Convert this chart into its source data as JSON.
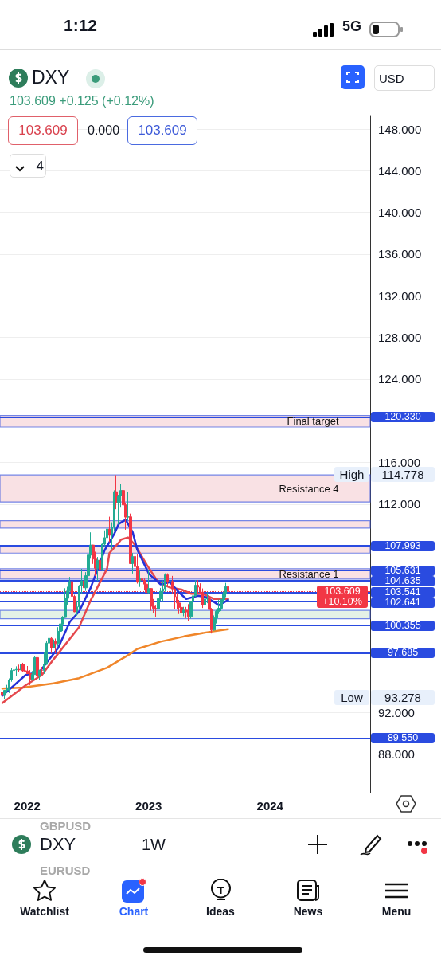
{
  "chart_data": {
    "type": "candlestick",
    "title": "DXY",
    "subtitle": "103.609 +0.125 (+0.12%)",
    "x": [
      "2021-10-18",
      "2021-10-25",
      "2021-11-01",
      "2021-11-08",
      "2021-11-15",
      "2021-11-22",
      "2021-11-29",
      "2021-12-06",
      "2021-12-13",
      "2021-12-20",
      "2021-12-27",
      "2022-01-03",
      "2022-01-10",
      "2022-01-17",
      "2022-01-24",
      "2022-01-31",
      "2022-02-07",
      "2022-02-14",
      "2022-02-21",
      "2022-02-28",
      "2022-03-07",
      "2022-03-14",
      "2022-03-21",
      "2022-03-28",
      "2022-04-04",
      "2022-04-11",
      "2022-04-18",
      "2022-04-25",
      "2022-05-02",
      "2022-05-09",
      "2022-05-16",
      "2022-05-23",
      "2022-05-30",
      "2022-06-06",
      "2022-06-13",
      "2022-06-20",
      "2022-06-27",
      "2022-07-04",
      "2022-07-11",
      "2022-07-18",
      "2022-07-25",
      "2022-08-01",
      "2022-08-08",
      "2022-08-15",
      "2022-08-22",
      "2022-08-29",
      "2022-09-05",
      "2022-09-12",
      "2022-09-19",
      "2022-09-26",
      "2022-10-03",
      "2022-10-10",
      "2022-10-17",
      "2022-10-24",
      "2022-10-31",
      "2022-11-07",
      "2022-11-14",
      "2022-11-21",
      "2022-11-28",
      "2022-12-05",
      "2022-12-12",
      "2022-12-19",
      "2022-12-26",
      "2023-01-02",
      "2023-01-09",
      "2023-01-16",
      "2023-01-23",
      "2023-01-30",
      "2023-02-06",
      "2023-02-13",
      "2023-02-20",
      "2023-02-27",
      "2023-03-06",
      "2023-03-13",
      "2023-03-20",
      "2023-03-27",
      "2023-04-03",
      "2023-04-10",
      "2023-04-17",
      "2023-04-24",
      "2023-05-01",
      "2023-05-08",
      "2023-05-15",
      "2023-05-22",
      "2023-05-29",
      "2023-06-05",
      "2023-06-12",
      "2023-06-19",
      "2023-06-26",
      "2023-07-03",
      "2023-07-10",
      "2023-07-17",
      "2023-07-24",
      "2023-07-31",
      "2023-08-07",
      "2023-08-14",
      "2023-08-21",
      "2023-08-28"
    ],
    "ohlc": [
      [
        93.95,
        94.05,
        93.5,
        93.64
      ],
      [
        93.64,
        94.15,
        93.278,
        94.12
      ],
      [
        94.12,
        94.65,
        93.88,
        94.32
      ],
      [
        94.32,
        95.27,
        93.87,
        95.12
      ],
      [
        95.12,
        96.25,
        94.95,
        96.03
      ],
      [
        96.03,
        96.94,
        95.98,
        96.09
      ],
      [
        96.09,
        96.43,
        95.53,
        96.15
      ],
      [
        96.15,
        96.59,
        95.85,
        96.08
      ],
      [
        96.08,
        96.91,
        95.89,
        96.64
      ],
      [
        96.64,
        96.77,
        95.9,
        96.0
      ],
      [
        96.0,
        96.44,
        95.58,
        95.97
      ],
      [
        95.97,
        96.46,
        95.68,
        95.73
      ],
      [
        95.73,
        96.07,
        94.63,
        95.17
      ],
      [
        95.17,
        95.98,
        95.06,
        95.64
      ],
      [
        95.64,
        97.44,
        95.63,
        97.27
      ],
      [
        97.27,
        97.35,
        95.14,
        95.49
      ],
      [
        95.49,
        96.1,
        95.14,
        96.05
      ],
      [
        96.05,
        96.38,
        95.63,
        96.04
      ],
      [
        96.04,
        97.74,
        95.71,
        96.61
      ],
      [
        96.61,
        98.91,
        96.59,
        98.66
      ],
      [
        98.66,
        99.42,
        97.72,
        99.12
      ],
      [
        99.12,
        99.29,
        97.7,
        98.21
      ],
      [
        98.21,
        99.01,
        98.19,
        98.8
      ],
      [
        98.8,
        99.1,
        97.68,
        98.61
      ],
      [
        98.61,
        100.19,
        98.32,
        99.79
      ],
      [
        99.79,
        100.75,
        99.39,
        100.5
      ],
      [
        100.5,
        101.26,
        99.82,
        101.12
      ],
      [
        101.12,
        103.93,
        101.08,
        102.96
      ],
      [
        102.96,
        104.07,
        102.35,
        103.66
      ],
      [
        103.66,
        105.01,
        103.61,
        104.57
      ],
      [
        104.57,
        104.64,
        102.65,
        103.15
      ],
      [
        103.15,
        103.3,
        101.64,
        101.66
      ],
      [
        101.66,
        102.74,
        101.3,
        102.14
      ],
      [
        102.14,
        104.24,
        101.81,
        104.15
      ],
      [
        104.15,
        105.79,
        103.41,
        104.64
      ],
      [
        104.64,
        104.79,
        103.68,
        103.97
      ],
      [
        103.97,
        105.47,
        103.67,
        105.13
      ],
      [
        105.13,
        107.79,
        104.76,
        107.11
      ],
      [
        107.11,
        109.29,
        106.76,
        108.07
      ],
      [
        108.07,
        108.1,
        106.26,
        106.73
      ],
      [
        106.73,
        107.43,
        105.09,
        105.85
      ],
      [
        105.85,
        106.93,
        104.64,
        106.61
      ],
      [
        106.61,
        106.81,
        104.64,
        105.69
      ],
      [
        105.69,
        108.21,
        105.59,
        108.16
      ],
      [
        108.16,
        109.48,
        107.94,
        108.78
      ],
      [
        108.78,
        110.03,
        108.32,
        109.61
      ],
      [
        109.61,
        110.79,
        108.35,
        109.0
      ],
      [
        109.0,
        110.26,
        107.68,
        109.77
      ],
      [
        109.77,
        113.33,
        109.37,
        113.19
      ],
      [
        113.19,
        114.778,
        111.51,
        112.12
      ],
      [
        112.12,
        112.9,
        110.05,
        112.8
      ],
      [
        112.8,
        113.92,
        111.66,
        113.31
      ],
      [
        113.31,
        113.88,
        111.08,
        111.92
      ],
      [
        111.92,
        112.15,
        109.54,
        110.75
      ],
      [
        110.75,
        113.15,
        110.42,
        110.78
      ],
      [
        110.78,
        111.09,
        106.27,
        106.29
      ],
      [
        106.29,
        107.31,
        105.34,
        106.98
      ],
      [
        106.98,
        107.99,
        105.66,
        106.0
      ],
      [
        106.0,
        107.19,
        104.37,
        104.51
      ],
      [
        104.51,
        105.67,
        104.05,
        104.83
      ],
      [
        104.83,
        105.19,
        103.44,
        104.7
      ],
      [
        104.7,
        104.86,
        103.79,
        104.32
      ],
      [
        104.32,
        104.55,
        103.45,
        103.52
      ],
      [
        103.52,
        105.63,
        103.38,
        103.9
      ],
      [
        103.9,
        103.95,
        101.77,
        102.2
      ],
      [
        102.2,
        102.9,
        101.53,
        101.99
      ],
      [
        101.99,
        102.26,
        101.18,
        101.93
      ],
      [
        101.93,
        103.08,
        100.82,
        102.92
      ],
      [
        102.92,
        103.96,
        102.65,
        103.63
      ],
      [
        103.63,
        104.67,
        102.61,
        103.87
      ],
      [
        103.87,
        105.36,
        103.6,
        105.21
      ],
      [
        105.21,
        105.36,
        104.1,
        104.52
      ],
      [
        104.52,
        105.88,
        104.09,
        104.58
      ],
      [
        104.58,
        105.11,
        103.42,
        103.86
      ],
      [
        103.86,
        103.9,
        101.91,
        103.12
      ],
      [
        103.12,
        103.49,
        101.92,
        102.51
      ],
      [
        102.51,
        102.81,
        101.45,
        102.09
      ],
      [
        102.09,
        102.8,
        100.79,
        101.55
      ],
      [
        101.55,
        102.14,
        101.24,
        101.82
      ],
      [
        101.82,
        102.13,
        101.06,
        101.66
      ],
      [
        101.66,
        102.4,
        100.79,
        101.21
      ],
      [
        101.21,
        102.73,
        101.01,
        102.69
      ],
      [
        102.69,
        103.63,
        102.22,
        103.2
      ],
      [
        103.2,
        104.7,
        103.11,
        104.22
      ],
      [
        104.22,
        104.7,
        103.39,
        104.03
      ],
      [
        104.03,
        104.4,
        103.36,
        103.56
      ],
      [
        103.56,
        103.91,
        102.03,
        102.34
      ],
      [
        102.34,
        103.07,
        101.93,
        102.9
      ],
      [
        102.9,
        103.54,
        102.49,
        102.91
      ],
      [
        102.91,
        103.33,
        101.79,
        101.88
      ],
      [
        101.88,
        102.03,
        99.58,
        99.91
      ],
      [
        99.91,
        101.32,
        99.86,
        101.07
      ],
      [
        101.07,
        101.84,
        100.54,
        101.71
      ],
      [
        101.71,
        102.84,
        101.45,
        102.0
      ],
      [
        102.0,
        102.91,
        101.73,
        102.84
      ],
      [
        102.84,
        103.59,
        102.55,
        103.37
      ],
      [
        103.37,
        104.44,
        103.07,
        104.09
      ],
      [
        104.09,
        104.27,
        103.05,
        103.609
      ]
    ],
    "colors": [
      "#f23645",
      "#22ab94",
      "#22ab94",
      "#22ab94",
      "#22ab94",
      "#22ab94",
      "#22ab94",
      "#f23645",
      "#22ab94",
      "#f23645",
      "#f23645",
      "#f23645",
      "#f23645",
      "#22ab94",
      "#22ab94",
      "#f23645",
      "#22ab94",
      "#f23645",
      "#22ab94",
      "#22ab94",
      "#22ab94",
      "#f23645",
      "#22ab94",
      "#f23645",
      "#22ab94",
      "#22ab94",
      "#22ab94",
      "#22ab94",
      "#22ab94",
      "#22ab94",
      "#f23645",
      "#f23645",
      "#22ab94",
      "#22ab94",
      "#22ab94",
      "#f23645",
      "#22ab94",
      "#22ab94",
      "#22ab94",
      "#f23645",
      "#f23645",
      "#22ab94",
      "#f23645",
      "#22ab94",
      "#22ab94",
      "#22ab94",
      "#f23645",
      "#22ab94",
      "#22ab94",
      "#f23645",
      "#22ab94",
      "#22ab94",
      "#f23645",
      "#f23645",
      "#22ab94",
      "#f23645",
      "#22ab94",
      "#f23645",
      "#f23645",
      "#22ab94",
      "#f23645",
      "#f23645",
      "#f23645",
      "#22ab94",
      "#f23645",
      "#f23645",
      "#f23645",
      "#22ab94",
      "#22ab94",
      "#22ab94",
      "#22ab94",
      "#f23645",
      "#22ab94",
      "#f23645",
      "#f23645",
      "#f23645",
      "#f23645",
      "#f23645",
      "#22ab94",
      "#f23645",
      "#f23645",
      "#22ab94",
      "#22ab94",
      "#22ab94",
      "#f23645",
      "#f23645",
      "#f23645",
      "#22ab94",
      "#22ab94",
      "#f23645",
      "#f23645",
      "#22ab94",
      "#22ab94",
      "#22ab94",
      "#22ab94",
      "#22ab94",
      "#22ab94",
      "#f23645"
    ],
    "series": [
      {
        "type": "line",
        "color": "#f0862a",
        "x": [
          "2021-10-18",
          "2021-12-20",
          "2022-03-21",
          "2022-06-06",
          "2022-08-29",
          "2022-10-31",
          "2022-11-28",
          "2023-02-06",
          "2023-04-17",
          "2023-06-26",
          "2023-08-28"
        ],
        "values": [
          94.3,
          94.4,
          94.8,
          95.3,
          96.3,
          97.5,
          98.1,
          98.8,
          99.3,
          99.7,
          100.0
        ]
      },
      {
        "type": "line",
        "color": "#e5484d",
        "x": [
          "2021-10-18",
          "2021-12-27",
          "2022-02-14",
          "2022-03-21",
          "2022-06-06",
          "2022-07-11",
          "2022-08-29",
          "2022-09-05",
          "2022-10-03",
          "2022-10-10",
          "2022-10-31",
          "2022-11-21",
          "2022-12-26",
          "2023-01-30",
          "2023-03-06",
          "2023-04-10",
          "2023-05-08",
          "2023-06-12",
          "2023-07-17",
          "2023-08-28"
        ],
        "values": [
          92.9,
          94.6,
          95.6,
          97.1,
          100.2,
          102.8,
          105.8,
          107.3,
          108.3,
          108.6,
          108.8,
          108.1,
          106.2,
          104.5,
          104.0,
          103.8,
          103.4,
          103.4,
          102.9,
          102.9
        ]
      },
      {
        "type": "line",
        "color": "#2531d8",
        "x": [
          "2021-10-18",
          "2021-12-27",
          "2022-02-07",
          "2022-04-04",
          "2022-05-09",
          "2022-06-06",
          "2022-07-11",
          "2022-08-22",
          "2022-09-19",
          "2022-10-03",
          "2022-10-24",
          "2022-11-14",
          "2022-11-28",
          "2023-01-02",
          "2023-02-06",
          "2023-03-06",
          "2023-04-03",
          "2023-04-24",
          "2023-05-29",
          "2023-06-19",
          "2023-07-17",
          "2023-07-31",
          "2023-08-28"
        ],
        "values": [
          93.6,
          95.6,
          95.9,
          98.2,
          100.7,
          101.7,
          104.0,
          107.6,
          109.1,
          110.1,
          110.5,
          109.3,
          107.6,
          105.3,
          104.3,
          104.5,
          103.5,
          102.9,
          103.2,
          103.1,
          102.6,
          102.3,
          102.8
        ]
      }
    ],
    "marker": "none",
    "xlim": [
      "2021-10-11",
      "2024-10-28"
    ],
    "xticks": [
      "2022",
      "2023",
      "2024"
    ],
    "ylim": [
      84.3,
      149.3
    ],
    "yticks": [
      {
        "value": 148,
        "label": "148.000"
      },
      {
        "value": 144,
        "label": "144.000"
      },
      {
        "value": 140,
        "label": "140.000"
      },
      {
        "value": 136,
        "label": "136.000"
      },
      {
        "value": 132,
        "label": "132.000"
      },
      {
        "value": 128,
        "label": "128.000"
      },
      {
        "value": 124,
        "label": "124.000"
      },
      {
        "value": 116,
        "label": "116.000"
      },
      {
        "value": 112,
        "label": "112.000"
      },
      {
        "value": 92,
        "label": "92.000"
      },
      {
        "value": 88,
        "label": "88.000"
      }
    ],
    "grid": "y",
    "ref_lines": [
      {
        "axis": "y",
        "value": 120.33,
        "label": "120.330",
        "color": "#2a4be0"
      },
      {
        "axis": "y",
        "value": 107.993,
        "label": "107.993",
        "color": "#2a4be0"
      },
      {
        "axis": "y",
        "value": 105.631,
        "label": "105.631",
        "color": "#2a4be0"
      },
      {
        "axis": "y",
        "value": 104.635,
        "label": "104.635",
        "color": "#2a4be0"
      },
      {
        "axis": "y",
        "value": 103.609,
        "label": "103.609",
        "color": "#f23645",
        "line_style": "dotted"
      },
      {
        "axis": "y",
        "value": 103.541,
        "label": "103.541",
        "color": "#2a4be0"
      },
      {
        "axis": "y",
        "value": 102.641,
        "label": "102.641",
        "color": "#2a4be0"
      },
      {
        "axis": "y",
        "value": 100.355,
        "label": "100.355",
        "color": "#2a4be0"
      },
      {
        "axis": "y",
        "value": 97.685,
        "label": "97.685",
        "color": "#2a4be0"
      },
      {
        "axis": "y",
        "value": 89.55,
        "label": "89.550",
        "color": "#2a4be0"
      }
    ],
    "bands": [
      {
        "axis": "y",
        "from": 119.4,
        "to": 120.5,
        "label": "Final target",
        "color": "#f6d4d8"
      },
      {
        "axis": "y",
        "from": 112.2,
        "to": 114.8,
        "label": "Resistance 4",
        "color": "#f6d4d8"
      },
      {
        "axis": "y",
        "from": 109.7,
        "to": 110.4,
        "color": "#f6d4d8"
      },
      {
        "axis": "y",
        "from": 107.3,
        "to": 108.0,
        "color": "#f6d4d8"
      },
      {
        "axis": "y",
        "from": 104.8,
        "to": 105.8,
        "label": "Resistance 1",
        "color": "#f6d4d8"
      },
      {
        "axis": "y",
        "from": 101.0,
        "to": 101.8,
        "color": "#d8ebdc"
      }
    ],
    "annotations": [
      "1:12",
      "5G",
      "103.609",
      "0.000",
      "103.609",
      "4",
      "USD",
      "High",
      "114.778",
      "Low",
      "93.278",
      "GBPUSD",
      "DXY",
      "1W",
      "EURUSD",
      "Watchlist",
      "Chart",
      "Ideas",
      "News",
      "Menu",
      "+10.10%"
    ]
  }
}
